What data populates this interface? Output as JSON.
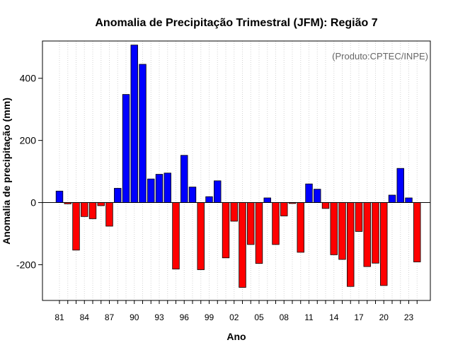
{
  "colors": {
    "positive": "#0000ff",
    "negative": "#ff0000",
    "bar_stroke": "#000000",
    "grid": "#d3d3d3",
    "credit": "#666666"
  },
  "chart_data": {
    "type": "bar",
    "title": "Anomalia de Precipitação Trimestral (JFM): Região 7",
    "xlabel": "Ano",
    "ylabel": "Anomalia de precipitação (mm)",
    "credit": "(Produto:CPTEC/INPE)",
    "ylim": [
      -315,
      520
    ],
    "yticks": [
      -200,
      0,
      200,
      400
    ],
    "grid": "vertical-dotted",
    "zero_line": true,
    "categories": [
      "81",
      "82",
      "83",
      "84",
      "85",
      "86",
      "87",
      "88",
      "89",
      "90",
      "91",
      "92",
      "93",
      "94",
      "95",
      "96",
      "97",
      "98",
      "99",
      "00",
      "01",
      "02",
      "03",
      "04",
      "05",
      "06",
      "07",
      "08",
      "09",
      "10",
      "11",
      "12",
      "13",
      "14",
      "15",
      "16",
      "17",
      "18",
      "19",
      "20",
      "21",
      "22",
      "23",
      "24"
    ],
    "xtick_labels": [
      "81",
      "84",
      "87",
      "90",
      "93",
      "96",
      "99",
      "02",
      "05",
      "08",
      "11",
      "14",
      "17",
      "20",
      "23"
    ],
    "values": [
      37,
      -4,
      -153,
      -45,
      -52,
      -10,
      -76,
      46,
      348,
      507,
      445,
      76,
      91,
      95,
      -214,
      152,
      50,
      -216,
      19,
      70,
      -178,
      -60,
      -273,
      -135,
      -196,
      15,
      -135,
      -43,
      -3,
      -160,
      60,
      43,
      -19,
      -168,
      -183,
      -270,
      -93,
      -206,
      -195,
      -267,
      24,
      110,
      15,
      -191
    ]
  }
}
